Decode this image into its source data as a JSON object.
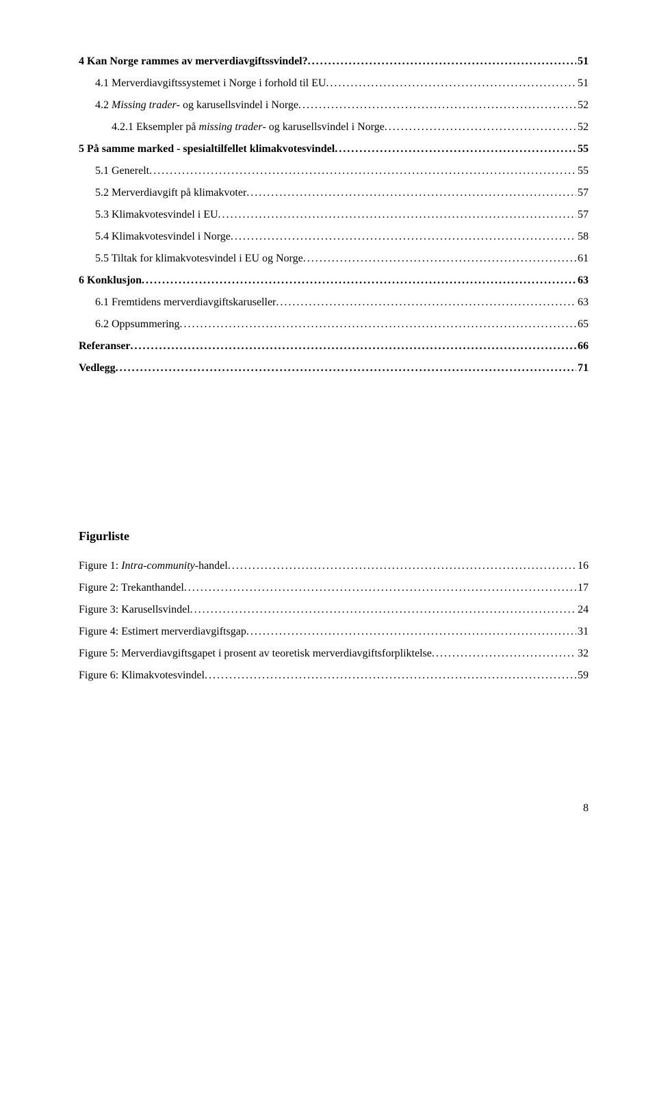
{
  "toc": [
    {
      "level": 1,
      "label": "4 Kan Norge rammes av merverdiavgiftssvindel?",
      "page": "51"
    },
    {
      "level": 2,
      "label": "4.1 Merverdiavgiftssystemet i Norge i forhold til EU",
      "page": "51"
    },
    {
      "level": 2,
      "label_pre": "4.2 ",
      "label_italic": "Missing trader",
      "label_post": "- og karusellsvindel i Norge",
      "page": "52"
    },
    {
      "level": 3,
      "label_pre": "4.2.1 Eksempler på ",
      "label_italic": "missing trader",
      "label_post": "- og karusellsvindel i Norge",
      "page": "52"
    },
    {
      "level": 1,
      "label": "5 På samme marked - spesialtilfellet klimakvotesvindel",
      "page": "55"
    },
    {
      "level": 2,
      "label": "5.1 Generelt",
      "page": "55"
    },
    {
      "level": 2,
      "label": "5.2 Merverdiavgift på klimakvoter",
      "page": "57"
    },
    {
      "level": 2,
      "label": "5.3 Klimakvotesvindel i EU",
      "page": "57"
    },
    {
      "level": 2,
      "label": "5.4 Klimakvotesvindel i Norge",
      "page": "58"
    },
    {
      "level": 2,
      "label": "5.5 Tiltak for klimakvotesvindel i EU og Norge",
      "page": "61"
    },
    {
      "level": 1,
      "label": "6 Konklusjon",
      "page": "63"
    },
    {
      "level": 2,
      "label": "6.1 Fremtidens merverdiavgiftskaruseller",
      "page": "63"
    },
    {
      "level": 2,
      "label": "6.2 Oppsummering",
      "page": "65"
    },
    {
      "level": 1,
      "label": "Referanser",
      "page": "66"
    },
    {
      "level": 1,
      "label": "Vedlegg",
      "page": "71"
    }
  ],
  "figlist_title": "Figurliste",
  "figures": [
    {
      "label_pre": "Figure 1: ",
      "label_italic": "Intra-community",
      "label_post": "-handel",
      "page": "16"
    },
    {
      "label": "Figure 2: Trekanthandel",
      "page": "17"
    },
    {
      "label": "Figure 3: Karusellsvindel",
      "page": "24"
    },
    {
      "label": "Figure 4: Estimert merverdiavgiftsgap",
      "page": "31"
    },
    {
      "label": "Figure 5: Merverdiavgiftsgapet i prosent av teoretisk merverdiavgiftsforpliktelse",
      "page": "32"
    },
    {
      "label": "Figure 6: Klimakvotesvindel",
      "page": "59"
    }
  ],
  "page_number": "8"
}
